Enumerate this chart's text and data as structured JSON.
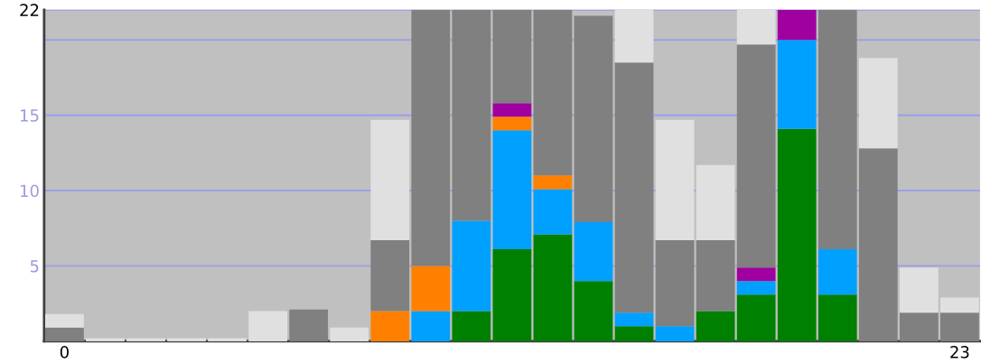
{
  "chart_data": {
    "type": "bar",
    "stacked": true,
    "categories": [
      "0",
      null,
      null,
      null,
      null,
      null,
      null,
      null,
      null,
      null,
      null,
      null,
      null,
      null,
      null,
      null,
      null,
      null,
      null,
      null,
      null,
      null,
      "23"
    ],
    "series": [
      {
        "color": "#008000",
        "values": [
          0,
          0,
          0,
          0,
          0,
          0,
          0,
          0,
          0,
          0,
          2.0,
          6.1,
          7.1,
          4.0,
          1.0,
          0,
          2.0,
          3.1,
          14.1,
          3.1,
          0,
          0,
          0
        ]
      },
      {
        "color": "#00a0ff",
        "values": [
          0,
          0,
          0,
          0,
          0,
          0,
          0,
          0,
          0,
          2.0,
          6.0,
          7.9,
          3.0,
          3.9,
          0.9,
          1.0,
          0,
          0.9,
          5.9,
          3.0,
          0,
          0,
          0
        ]
      },
      {
        "color": "#ff8000",
        "values": [
          0,
          0,
          0,
          0,
          0,
          0,
          0,
          0,
          2.0,
          3.0,
          0,
          0.9,
          0.9,
          0,
          0,
          0,
          0,
          0,
          0,
          0,
          0,
          0,
          0
        ]
      },
      {
        "color": "#a000a0",
        "values": [
          0,
          0,
          0,
          0,
          0,
          0,
          0,
          0,
          0,
          0,
          0,
          0.9,
          0,
          0,
          0,
          0,
          0,
          0.9,
          2.0,
          0,
          0,
          0,
          0
        ]
      },
      {
        "color": "#808080",
        "values": [
          0.9,
          0,
          0,
          0,
          0,
          0,
          2.1,
          0,
          4.7,
          17.0,
          14.0,
          6.2,
          11.0,
          13.7,
          16.6,
          5.7,
          4.7,
          14.8,
          0,
          15.9,
          12.8,
          1.9,
          1.9
        ]
      },
      {
        "color": "#e0e0e0",
        "values": [
          0.9,
          0.2,
          0.2,
          0.2,
          0.2,
          2.0,
          0,
          0.9,
          8.0,
          0,
          0,
          0,
          0,
          0,
          3.5,
          8.0,
          5.0,
          2.3,
          0,
          0,
          6.0,
          3.0,
          1.0
        ]
      }
    ],
    "ylim": [
      0,
      22
    ],
    "yticks": [
      5,
      10,
      15,
      {
        "value": 20,
        "label": null
      },
      22
    ],
    "grid": "y"
  }
}
